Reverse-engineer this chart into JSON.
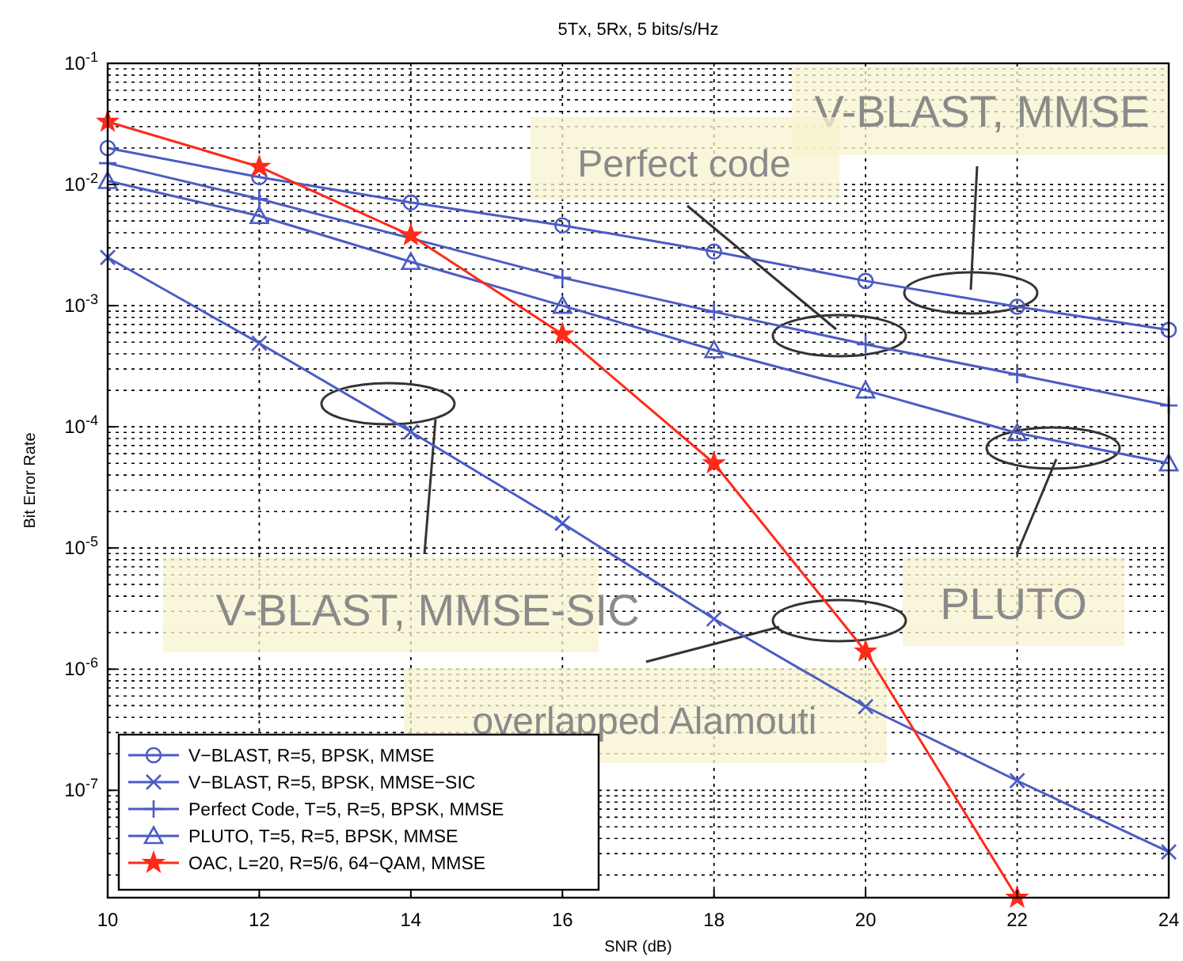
{
  "chart_data": {
    "type": "line",
    "title": "5Tx, 5Rx, 5 bits/s/Hz",
    "xlabel": "SNR (dB)",
    "ylabel": "Bit Error Rate",
    "x": [
      10,
      12,
      14,
      16,
      18,
      20,
      22,
      24
    ],
    "series": [
      {
        "name": "V−BLAST, R=5, BPSK, MMSE",
        "color": "#4b5cc4",
        "marker": "circle",
        "values": [
          0.02,
          0.0115,
          0.0071,
          0.0046,
          0.0028,
          0.0016,
          0.00098,
          0.00063
        ]
      },
      {
        "name": "V−BLAST, R=5, BPSK, MMSE−SIC",
        "color": "#4b5cc4",
        "marker": "cross",
        "values": [
          0.0025,
          0.00049,
          9.1e-05,
          1.6e-05,
          2.6e-06,
          4.9e-07,
          1.2e-07,
          3.1e-08
        ]
      },
      {
        "name": "Perfect Code, T=5, R=5, BPSK, MMSE",
        "color": "#4b5cc4",
        "marker": "plus",
        "values": [
          0.015,
          0.0076,
          null,
          0.0017,
          0.00089,
          0.00048,
          0.00027,
          0.00015
        ]
      },
      {
        "name": "PLUTO, T=5, R=5, BPSK, MMSE",
        "color": "#4b5cc4",
        "marker": "triangle",
        "values": [
          0.0107,
          0.0055,
          0.0023,
          0.001,
          0.00043,
          0.0002,
          8.9e-05,
          5e-05
        ]
      },
      {
        "name": "OAC, L=20, R=5/6, 64−QAM, MMSE",
        "color": "#ff2a1a",
        "marker": "star",
        "x": [
          10,
          12,
          14,
          16,
          18,
          20,
          22
        ],
        "values": [
          0.033,
          0.014,
          0.0038,
          0.00058,
          5e-05,
          1.4e-06,
          1.3e-08
        ]
      }
    ],
    "xlim": [
      10,
      24
    ],
    "xticks": [
      10,
      12,
      14,
      16,
      18,
      20,
      22,
      24
    ],
    "ylim": [
      1.3e-08,
      0.1
    ],
    "yticks": [
      {
        "value": 0.1,
        "label": "10$^{-1}$"
      },
      {
        "value": 0.01,
        "label": "10$^{-2}$"
      },
      {
        "value": 0.001,
        "label": "10$^{-3}$"
      },
      {
        "value": 0.0001,
        "label": "10$^{-4}$"
      },
      {
        "value": 1e-05,
        "label": "10$^{-5}$"
      },
      {
        "value": 1e-06,
        "label": "10$^{-6}$"
      },
      {
        "value": 1e-07,
        "label": "10$^{-7}$"
      }
    ],
    "log": true,
    "grid": true,
    "legend": "bottom left",
    "line_style": "solid",
    "annotations": [
      "V-BLAST, MMSE",
      "Perfect code",
      "V-BLAST, MMSE-SIC",
      "PLUTO",
      "overlapped Alamouti"
    ]
  }
}
